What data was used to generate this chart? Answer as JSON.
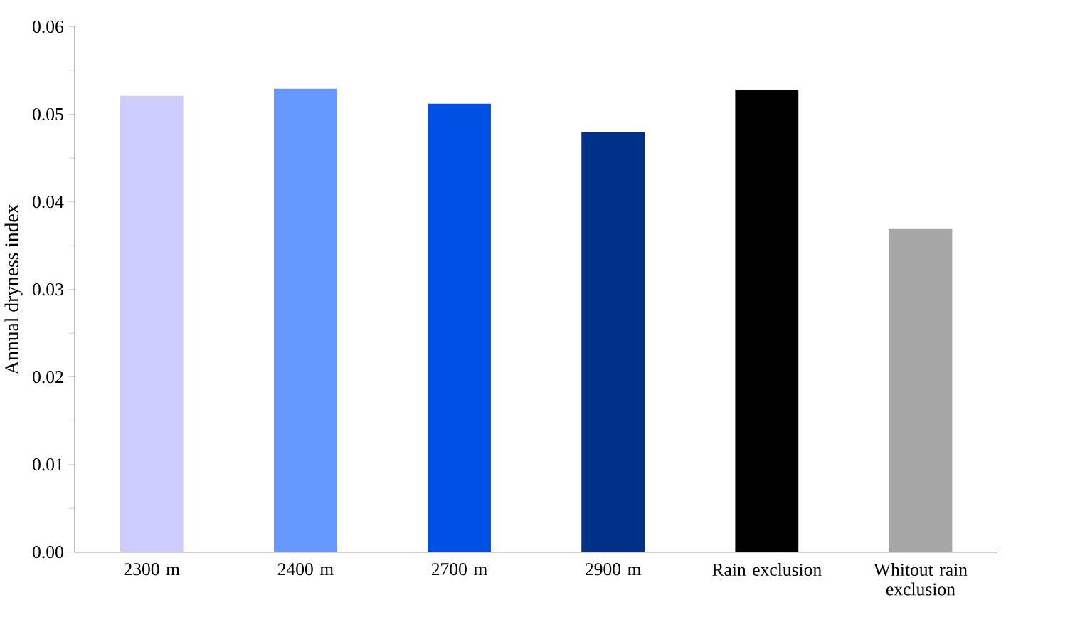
{
  "chart_data": {
    "type": "bar",
    "ylabel": "Annual dryness index",
    "categories": [
      "2300 m",
      "2400 m",
      "2700 m",
      "2900 m",
      "Rain exclusion",
      "Whitout rain exclusion"
    ],
    "values": [
      0.0521,
      0.0529,
      0.0512,
      0.048,
      0.0528,
      0.0369
    ],
    "colors": [
      "#ccccff",
      "#6699ff",
      "#0050e6",
      "#003087",
      "#000000",
      "#a6a6a6"
    ],
    "ylim": [
      0,
      0.06
    ],
    "yticks": [
      {
        "value": 0,
        "label": "0.00"
      },
      {
        "value": 0.005,
        "label": null
      },
      {
        "value": 0.01,
        "label": "0.01"
      },
      {
        "value": 0.015,
        "label": null
      },
      {
        "value": 0.02,
        "label": "0.02"
      },
      {
        "value": 0.025,
        "label": null
      },
      {
        "value": 0.03,
        "label": "0.03"
      },
      {
        "value": 0.035,
        "label": null
      },
      {
        "value": 0.04,
        "label": "0.04"
      },
      {
        "value": 0.045,
        "label": null
      },
      {
        "value": 0.05,
        "label": "0.05"
      },
      {
        "value": 0.055,
        "label": null
      },
      {
        "value": 0.06,
        "label": "0.06"
      }
    ]
  }
}
